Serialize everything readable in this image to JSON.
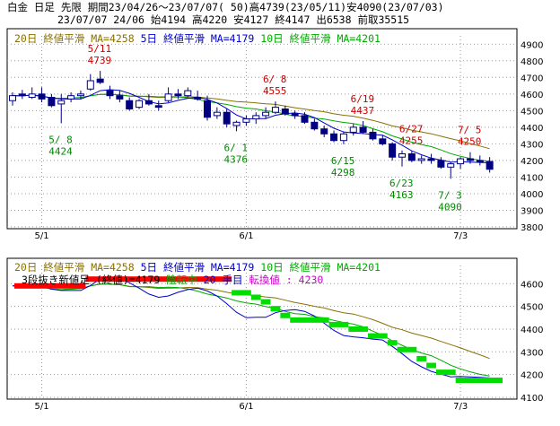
{
  "header": {
    "line1": "白金 日足 先限 期間23/04/26～23/07/07( 50)高4739(23/05/11)安4090(23/07/03)",
    "line2": "23/07/07 24/06 始4194 高4220 安4127 終4147 出6538 前取35515"
  },
  "colors": {
    "ma20": "#8a7000",
    "ma5": "#0000cc",
    "ma10": "#00aa00",
    "candle_down": "#000080",
    "candle_up": "#ffffff",
    "high_ann": "#cc0000",
    "low_ann": "#008800",
    "kagi_up": "#ff0000",
    "kagi_down": "#00dd00",
    "grid": "#999999"
  },
  "chart_data": [
    {
      "type": "candlestick",
      "legend": [
        {
          "text": "20日 終値平滑 MA=4258",
          "color_key": "ma20"
        },
        {
          "text": "5日 終値平滑 MA=4179",
          "color_key": "ma5"
        },
        {
          "text": "10日 終値平滑 MA=4201",
          "color_key": "ma10"
        }
      ],
      "y_ticks": [
        "4900",
        "4800",
        "4700",
        "4600",
        "4500",
        "4400",
        "4300",
        "4200",
        "4100",
        "4000",
        "3900",
        "3800"
      ],
      "ylim": [
        3800,
        4950
      ],
      "x_ticks": [
        {
          "label": "5/1",
          "index": 3
        },
        {
          "label": "6/1",
          "index": 24
        },
        {
          "label": "7/3",
          "index": 46
        }
      ],
      "bar_count": 50,
      "ohlc": [
        [
          4560,
          4610,
          4530,
          4590
        ],
        [
          4600,
          4625,
          4570,
          4590
        ],
        [
          4580,
          4640,
          4570,
          4600
        ],
        [
          4600,
          4640,
          4550,
          4570
        ],
        [
          4580,
          4600,
          4520,
          4530
        ],
        [
          4540,
          4600,
          4424,
          4560
        ],
        [
          4570,
          4610,
          4550,
          4590
        ],
        [
          4590,
          4620,
          4570,
          4600
        ],
        [
          4630,
          4720,
          4620,
          4680
        ],
        [
          4690,
          4739,
          4660,
          4670
        ],
        [
          4620,
          4650,
          4570,
          4590
        ],
        [
          4590,
          4620,
          4550,
          4570
        ],
        [
          4560,
          4580,
          4500,
          4510
        ],
        [
          4520,
          4570,
          4510,
          4560
        ],
        [
          4560,
          4600,
          4530,
          4540
        ],
        [
          4530,
          4560,
          4500,
          4520
        ],
        [
          4560,
          4640,
          4550,
          4600
        ],
        [
          4600,
          4630,
          4570,
          4590
        ],
        [
          4590,
          4640,
          4580,
          4620
        ],
        [
          4580,
          4620,
          4560,
          4570
        ],
        [
          4560,
          4590,
          4440,
          4460
        ],
        [
          4470,
          4520,
          4450,
          4490
        ],
        [
          4490,
          4510,
          4400,
          4420
        ],
        [
          4410,
          4440,
          4376,
          4430
        ],
        [
          4430,
          4470,
          4410,
          4450
        ],
        [
          4450,
          4490,
          4420,
          4470
        ],
        [
          4470,
          4520,
          4450,
          4490
        ],
        [
          4490,
          4555,
          4480,
          4520
        ],
        [
          4510,
          4530,
          4470,
          4480
        ],
        [
          4480,
          4500,
          4450,
          4470
        ],
        [
          4470,
          4490,
          4420,
          4430
        ],
        [
          4430,
          4450,
          4380,
          4390
        ],
        [
          4390,
          4410,
          4340,
          4360
        ],
        [
          4360,
          4380,
          4310,
          4320
        ],
        [
          4320,
          4370,
          4298,
          4360
        ],
        [
          4370,
          4420,
          4350,
          4400
        ],
        [
          4400,
          4437,
          4360,
          4370
        ],
        [
          4370,
          4390,
          4320,
          4330
        ],
        [
          4330,
          4350,
          4290,
          4300
        ],
        [
          4300,
          4310,
          4200,
          4220
        ],
        [
          4220,
          4260,
          4163,
          4240
        ],
        [
          4240,
          4255,
          4190,
          4200
        ],
        [
          4200,
          4230,
          4180,
          4210
        ],
        [
          4210,
          4240,
          4180,
          4200
        ],
        [
          4200,
          4220,
          4150,
          4160
        ],
        [
          4160,
          4190,
          4090,
          4180
        ],
        [
          4180,
          4220,
          4150,
          4210
        ],
        [
          4210,
          4250,
          4180,
          4200
        ],
        [
          4200,
          4230,
          4170,
          4190
        ],
        [
          4194,
          4220,
          4127,
          4147
        ]
      ],
      "annotations": [
        {
          "date": "5/11",
          "value": "4739",
          "kind": "high",
          "index": 9
        },
        {
          "date": "5/ 8",
          "value": "4424",
          "kind": "low",
          "index": 5
        },
        {
          "date": "6/ 1",
          "value": "4376",
          "kind": "low",
          "index": 23
        },
        {
          "date": "6/ 8",
          "value": "4555",
          "kind": "high",
          "index": 27
        },
        {
          "date": "6/15",
          "value": "4298",
          "kind": "low",
          "index": 34
        },
        {
          "date": "6/19",
          "value": "4437",
          "kind": "high",
          "index": 36
        },
        {
          "date": "6/23",
          "value": "4163",
          "kind": "low",
          "index": 40
        },
        {
          "date": "6/27",
          "value": "4255",
          "kind": "high",
          "index": 41
        },
        {
          "date": "7/ 3",
          "value": "4090",
          "kind": "low",
          "index": 45
        },
        {
          "date": "7/ 5",
          "value": "4250",
          "kind": "high",
          "index": 47
        }
      ]
    },
    {
      "type": "line",
      "legend": [
        {
          "text": "20日 終値平滑 MA=4258",
          "color_key": "ma20"
        },
        {
          "text": "5日 終値平滑 MA=4179",
          "color_key": "ma5"
        },
        {
          "text": "10日 終値平滑 MA=4201",
          "color_key": "ma10"
        }
      ],
      "sub_legend": [
        {
          "text": "3段抜き新値足 (終値)=4179",
          "color": "#000000"
        },
        {
          "text": " 陰転中 ",
          "color": "#00aa00"
        },
        {
          "text": "20 手目 ",
          "color": "#0000cc"
        },
        {
          "text": "転換値 : 4230",
          "color": "#cc00cc"
        }
      ],
      "y_ticks": [
        "4600",
        "4500",
        "4400",
        "4300",
        "4200",
        "4100"
      ],
      "ylim": [
        4100,
        4680
      ],
      "x_ticks": [
        {
          "label": "5/1",
          "index": 3
        },
        {
          "label": "6/1",
          "index": 24
        },
        {
          "label": "7/3",
          "index": 46
        }
      ],
      "kagi": [
        {
          "from": 0,
          "to": 8,
          "value": 4590,
          "dir": "up"
        },
        {
          "from": 8,
          "to": 23,
          "value": 4620,
          "dir": "up"
        },
        {
          "from": 23,
          "to": 25,
          "value": 4560,
          "dir": "down"
        },
        {
          "from": 25,
          "to": 26,
          "value": 4540,
          "dir": "down"
        },
        {
          "from": 26,
          "to": 27,
          "value": 4520,
          "dir": "down"
        },
        {
          "from": 27,
          "to": 28,
          "value": 4490,
          "dir": "down"
        },
        {
          "from": 28,
          "to": 29,
          "value": 4460,
          "dir": "down"
        },
        {
          "from": 29,
          "to": 33,
          "value": 4440,
          "dir": "down"
        },
        {
          "from": 33,
          "to": 35,
          "value": 4420,
          "dir": "down"
        },
        {
          "from": 35,
          "to": 37,
          "value": 4400,
          "dir": "down"
        },
        {
          "from": 37,
          "to": 39,
          "value": 4370,
          "dir": "down"
        },
        {
          "from": 39,
          "to": 40,
          "value": 4340,
          "dir": "down"
        },
        {
          "from": 40,
          "to": 42,
          "value": 4310,
          "dir": "down"
        },
        {
          "from": 42,
          "to": 43,
          "value": 4270,
          "dir": "down"
        },
        {
          "from": 43,
          "to": 44,
          "value": 4240,
          "dir": "down"
        },
        {
          "from": 44,
          "to": 46,
          "value": 4210,
          "dir": "down"
        },
        {
          "from": 46,
          "to": 51,
          "value": 4175,
          "dir": "down"
        }
      ]
    }
  ]
}
